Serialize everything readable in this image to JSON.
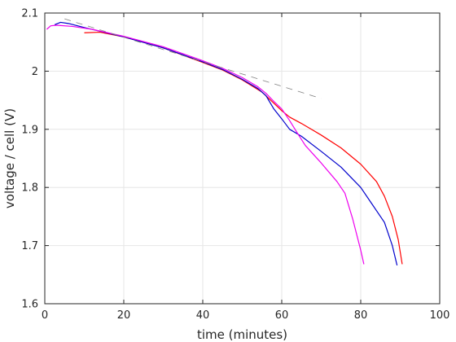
{
  "chart_data": {
    "type": "line",
    "title": "",
    "xlabel": "time (minutes)",
    "ylabel": "voltage / cell (V)",
    "xlim": [
      0,
      100
    ],
    "ylim": [
      1.6,
      2.1
    ],
    "x_ticks": [
      0,
      20,
      40,
      60,
      80,
      100
    ],
    "y_ticks": [
      1.6,
      1.7,
      1.8,
      1.9,
      2.0,
      2.1
    ],
    "x_tick_labels": [
      "0",
      "20",
      "40",
      "60",
      "80",
      "100"
    ],
    "y_tick_labels": [
      "1.6",
      "1.7",
      "1.8",
      "1.9",
      "2",
      "2.1"
    ],
    "grid": true,
    "box": true,
    "series": [
      {
        "color": "#ff0000",
        "style": "solid",
        "points": [
          [
            10,
            2.066
          ],
          [
            14,
            2.067
          ],
          [
            20,
            2.059
          ],
          [
            30,
            2.04
          ],
          [
            40,
            2.015
          ],
          [
            45,
            2.002
          ],
          [
            50,
            1.985
          ],
          [
            55,
            1.964
          ],
          [
            58,
            1.945
          ],
          [
            60,
            1.932
          ],
          [
            62,
            1.921
          ],
          [
            65,
            1.91
          ],
          [
            70,
            1.89
          ],
          [
            75,
            1.868
          ],
          [
            80,
            1.84
          ],
          [
            84,
            1.81
          ],
          [
            86,
            1.785
          ],
          [
            88,
            1.75
          ],
          [
            89.5,
            1.71
          ],
          [
            90.5,
            1.668
          ]
        ]
      },
      {
        "color": "#0000cc",
        "style": "solid",
        "points": [
          [
            2.5,
            2.08
          ],
          [
            4,
            2.084
          ],
          [
            6,
            2.082
          ],
          [
            10,
            2.075
          ],
          [
            15,
            2.067
          ],
          [
            20,
            2.059
          ],
          [
            30,
            2.04
          ],
          [
            40,
            2.016
          ],
          [
            45,
            2.003
          ],
          [
            50,
            1.986
          ],
          [
            54,
            1.97
          ],
          [
            56,
            1.958
          ],
          [
            58,
            1.935
          ],
          [
            60,
            1.918
          ],
          [
            62,
            1.9
          ],
          [
            65,
            1.888
          ],
          [
            70,
            1.862
          ],
          [
            75,
            1.835
          ],
          [
            80,
            1.8
          ],
          [
            83,
            1.77
          ],
          [
            86,
            1.74
          ],
          [
            88,
            1.7
          ],
          [
            89.2,
            1.666
          ]
        ]
      },
      {
        "color": "#ee00ee",
        "style": "solid",
        "points": [
          [
            0.5,
            2.072
          ],
          [
            1.5,
            2.078
          ],
          [
            3,
            2.079
          ],
          [
            7,
            2.077
          ],
          [
            12,
            2.072
          ],
          [
            20,
            2.06
          ],
          [
            30,
            2.042
          ],
          [
            40,
            2.018
          ],
          [
            45,
            2.005
          ],
          [
            50,
            1.989
          ],
          [
            54,
            1.973
          ],
          [
            56,
            1.962
          ],
          [
            58,
            1.948
          ],
          [
            60,
            1.935
          ],
          [
            62,
            1.915
          ],
          [
            64,
            1.893
          ],
          [
            66,
            1.872
          ],
          [
            70,
            1.842
          ],
          [
            74,
            1.81
          ],
          [
            76,
            1.79
          ],
          [
            78,
            1.745
          ],
          [
            80,
            1.692
          ],
          [
            80.8,
            1.668
          ]
        ]
      },
      {
        "color": "#808080",
        "style": "dashed",
        "points": [
          [
            5,
            2.09
          ],
          [
            70,
            1.953
          ]
        ]
      }
    ]
  }
}
